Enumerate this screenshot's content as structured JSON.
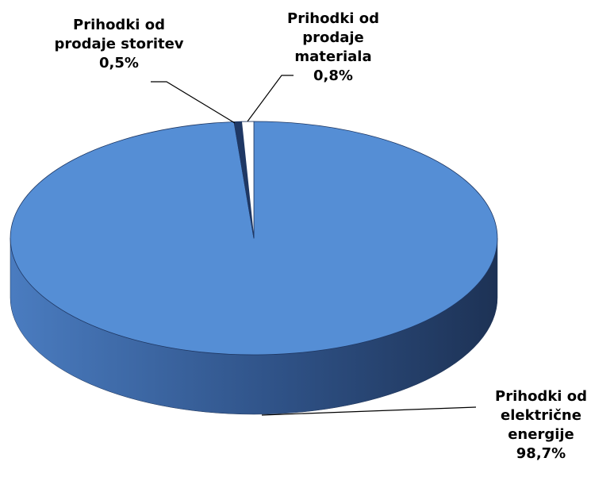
{
  "chart_data": {
    "type": "pie",
    "categories": [
      "Prihodki od električne energije",
      "Prihodki od prodaje storitev",
      "Prihodki od prodaje materiala"
    ],
    "values": [
      98.7,
      0.5,
      0.8
    ],
    "value_labels": [
      "98,7%",
      "0,5%",
      "0,8%"
    ],
    "colors": [
      "#558ed5",
      "#1f3864",
      "#ffffff"
    ]
  }
}
